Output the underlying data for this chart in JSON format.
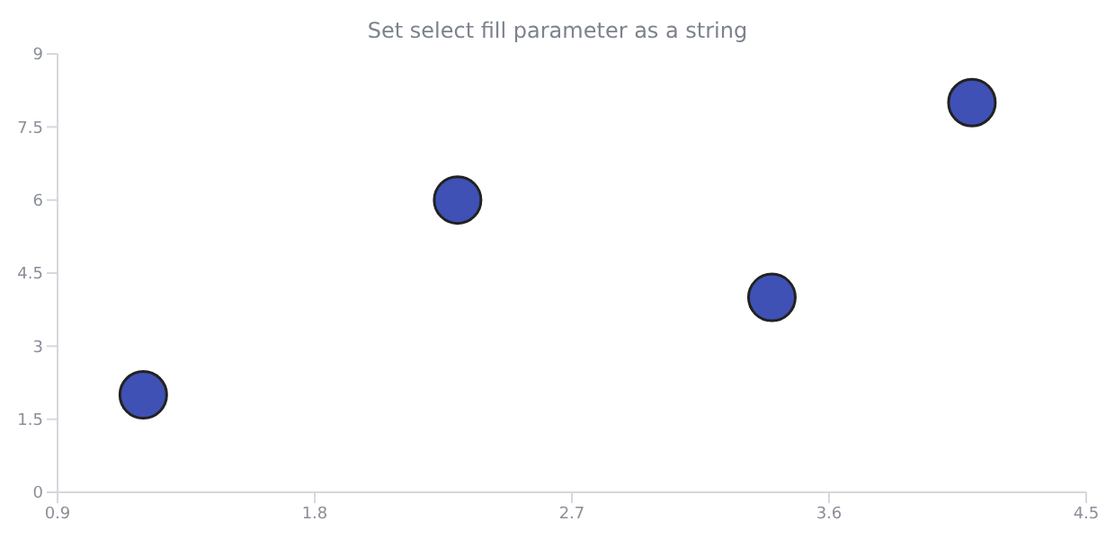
{
  "chart_data": {
    "type": "scatter",
    "title": "Set select fill parameter as a string",
    "x": [
      1.2,
      2.3,
      3.4,
      4.1
    ],
    "series": [
      {
        "color": "#3f51b5",
        "values": [
          2,
          6,
          4,
          8
        ]
      }
    ],
    "xlim": [
      0.9,
      4.5
    ],
    "xticks": [
      0.9,
      1.8,
      2.7,
      3.6,
      4.5
    ],
    "ylim": [
      0,
      9
    ],
    "yticks": [
      0,
      1.5,
      3,
      4.5,
      6,
      7.5,
      9
    ],
    "grid": false,
    "legend": false,
    "marker": "circle"
  }
}
